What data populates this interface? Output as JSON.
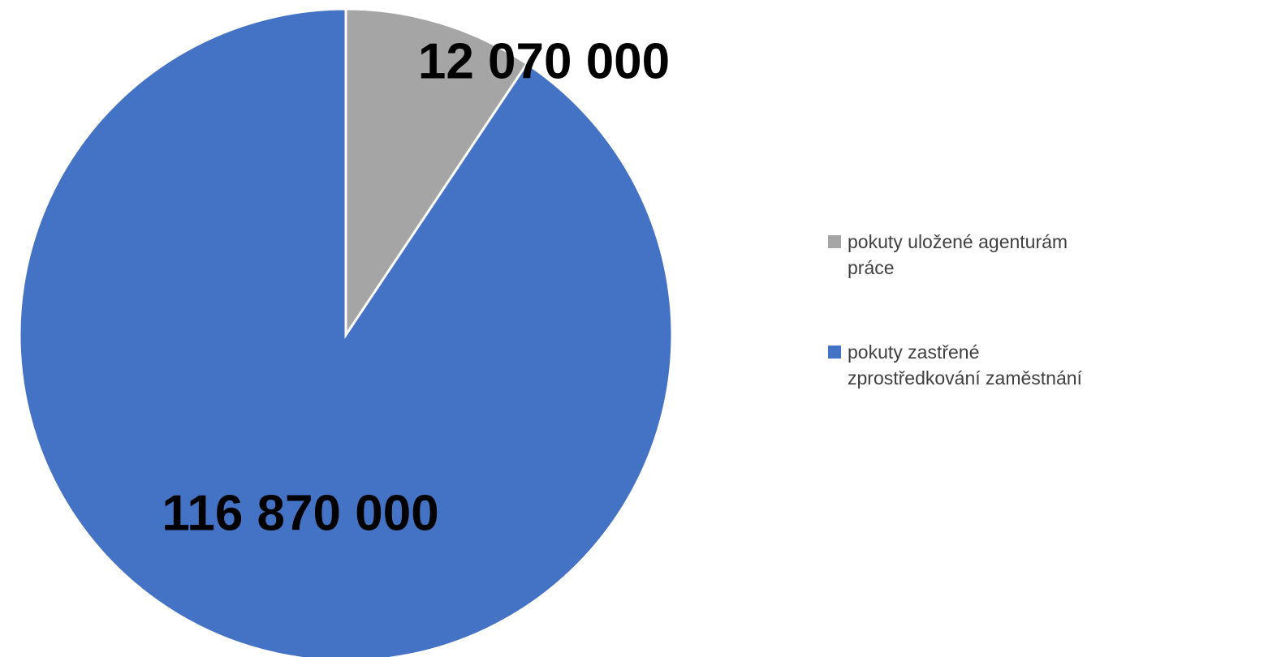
{
  "chart_data": {
    "type": "pie",
    "categories": [
      "pokuty uložené agenturám práce",
      "pokuty zastřené zprostředkování zaměstnání"
    ],
    "values": [
      12070000,
      116870000
    ],
    "value_labels": [
      "12 070 000",
      "116 870 000"
    ],
    "colors": [
      "#a5a5a5",
      "#4472c4"
    ],
    "legend": "right"
  }
}
